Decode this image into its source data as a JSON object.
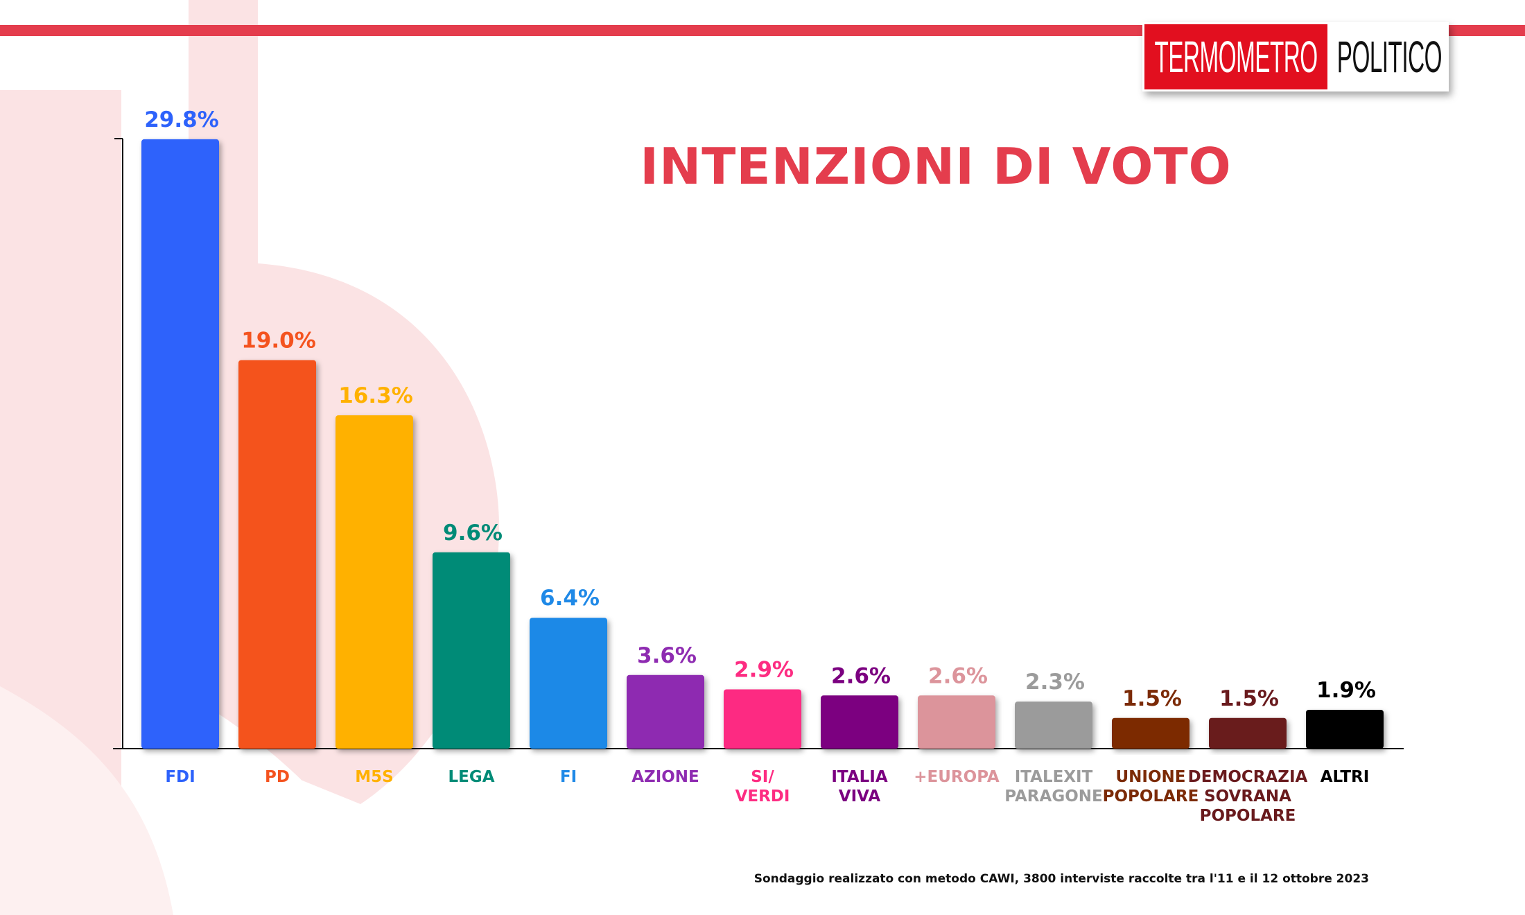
{
  "brand": {
    "logo_left": "TERMOMETRO",
    "logo_right": "POLITICO",
    "accent": "#e43d4d",
    "logo_red": "#e20f1f"
  },
  "footnote": "Sondaggio realizzato con metodo CAWI, 3800 interviste raccolte tra l'11 e il 12 ottobre 2023",
  "chart_data": {
    "type": "bar",
    "title": "INTENZIONI DI VOTO",
    "xlabel": "",
    "ylabel": "",
    "ylim": [
      0,
      33
    ],
    "grid": false,
    "categories": [
      [
        "FDI"
      ],
      [
        "PD"
      ],
      [
        "M5S"
      ],
      [
        "LEGA"
      ],
      [
        "FI"
      ],
      [
        "AZIONE"
      ],
      [
        "SI/",
        "VERDI"
      ],
      [
        "ITALIA",
        "VIVA"
      ],
      [
        "+EUROPA"
      ],
      [
        "ITALEXIT",
        "PARAGONE"
      ],
      [
        "UNIONE",
        "POPOLARE"
      ],
      [
        "DEMOCRAZIA",
        "SOVRANA",
        "POPOLARE"
      ],
      [
        "ALTRI"
      ]
    ],
    "values": [
      29.8,
      19.0,
      16.3,
      9.6,
      6.4,
      3.6,
      2.9,
      2.6,
      2.6,
      2.3,
      1.5,
      1.5,
      1.9
    ],
    "value_labels": [
      "29.8%",
      "19.0%",
      "16.3%",
      "9.6%",
      "6.4%",
      "3.6%",
      "2.9%",
      "2.6%",
      "2.6%",
      "2.3%",
      "1.5%",
      "1.5%",
      "1.9%"
    ],
    "colors": [
      "#2d62fb",
      "#f4531f",
      "#ffb100",
      "#008b77",
      "#1f89e7",
      "#8e2bb1",
      "#fd2c82",
      "#7b0080",
      "#dc949b",
      "#9b9b9b",
      "#7b2a06",
      "#691a1d",
      "#000000"
    ],
    "label_colors": [
      "#2d62fb",
      "#f4531f",
      "#ffb100",
      "#008b77",
      "#1f89e7",
      "#8e2bb1",
      "#fd2c82",
      "#7b0080",
      "#dc949b",
      "#9b9b9b",
      "#7b2a06",
      "#691a1d",
      "#000000"
    ]
  }
}
